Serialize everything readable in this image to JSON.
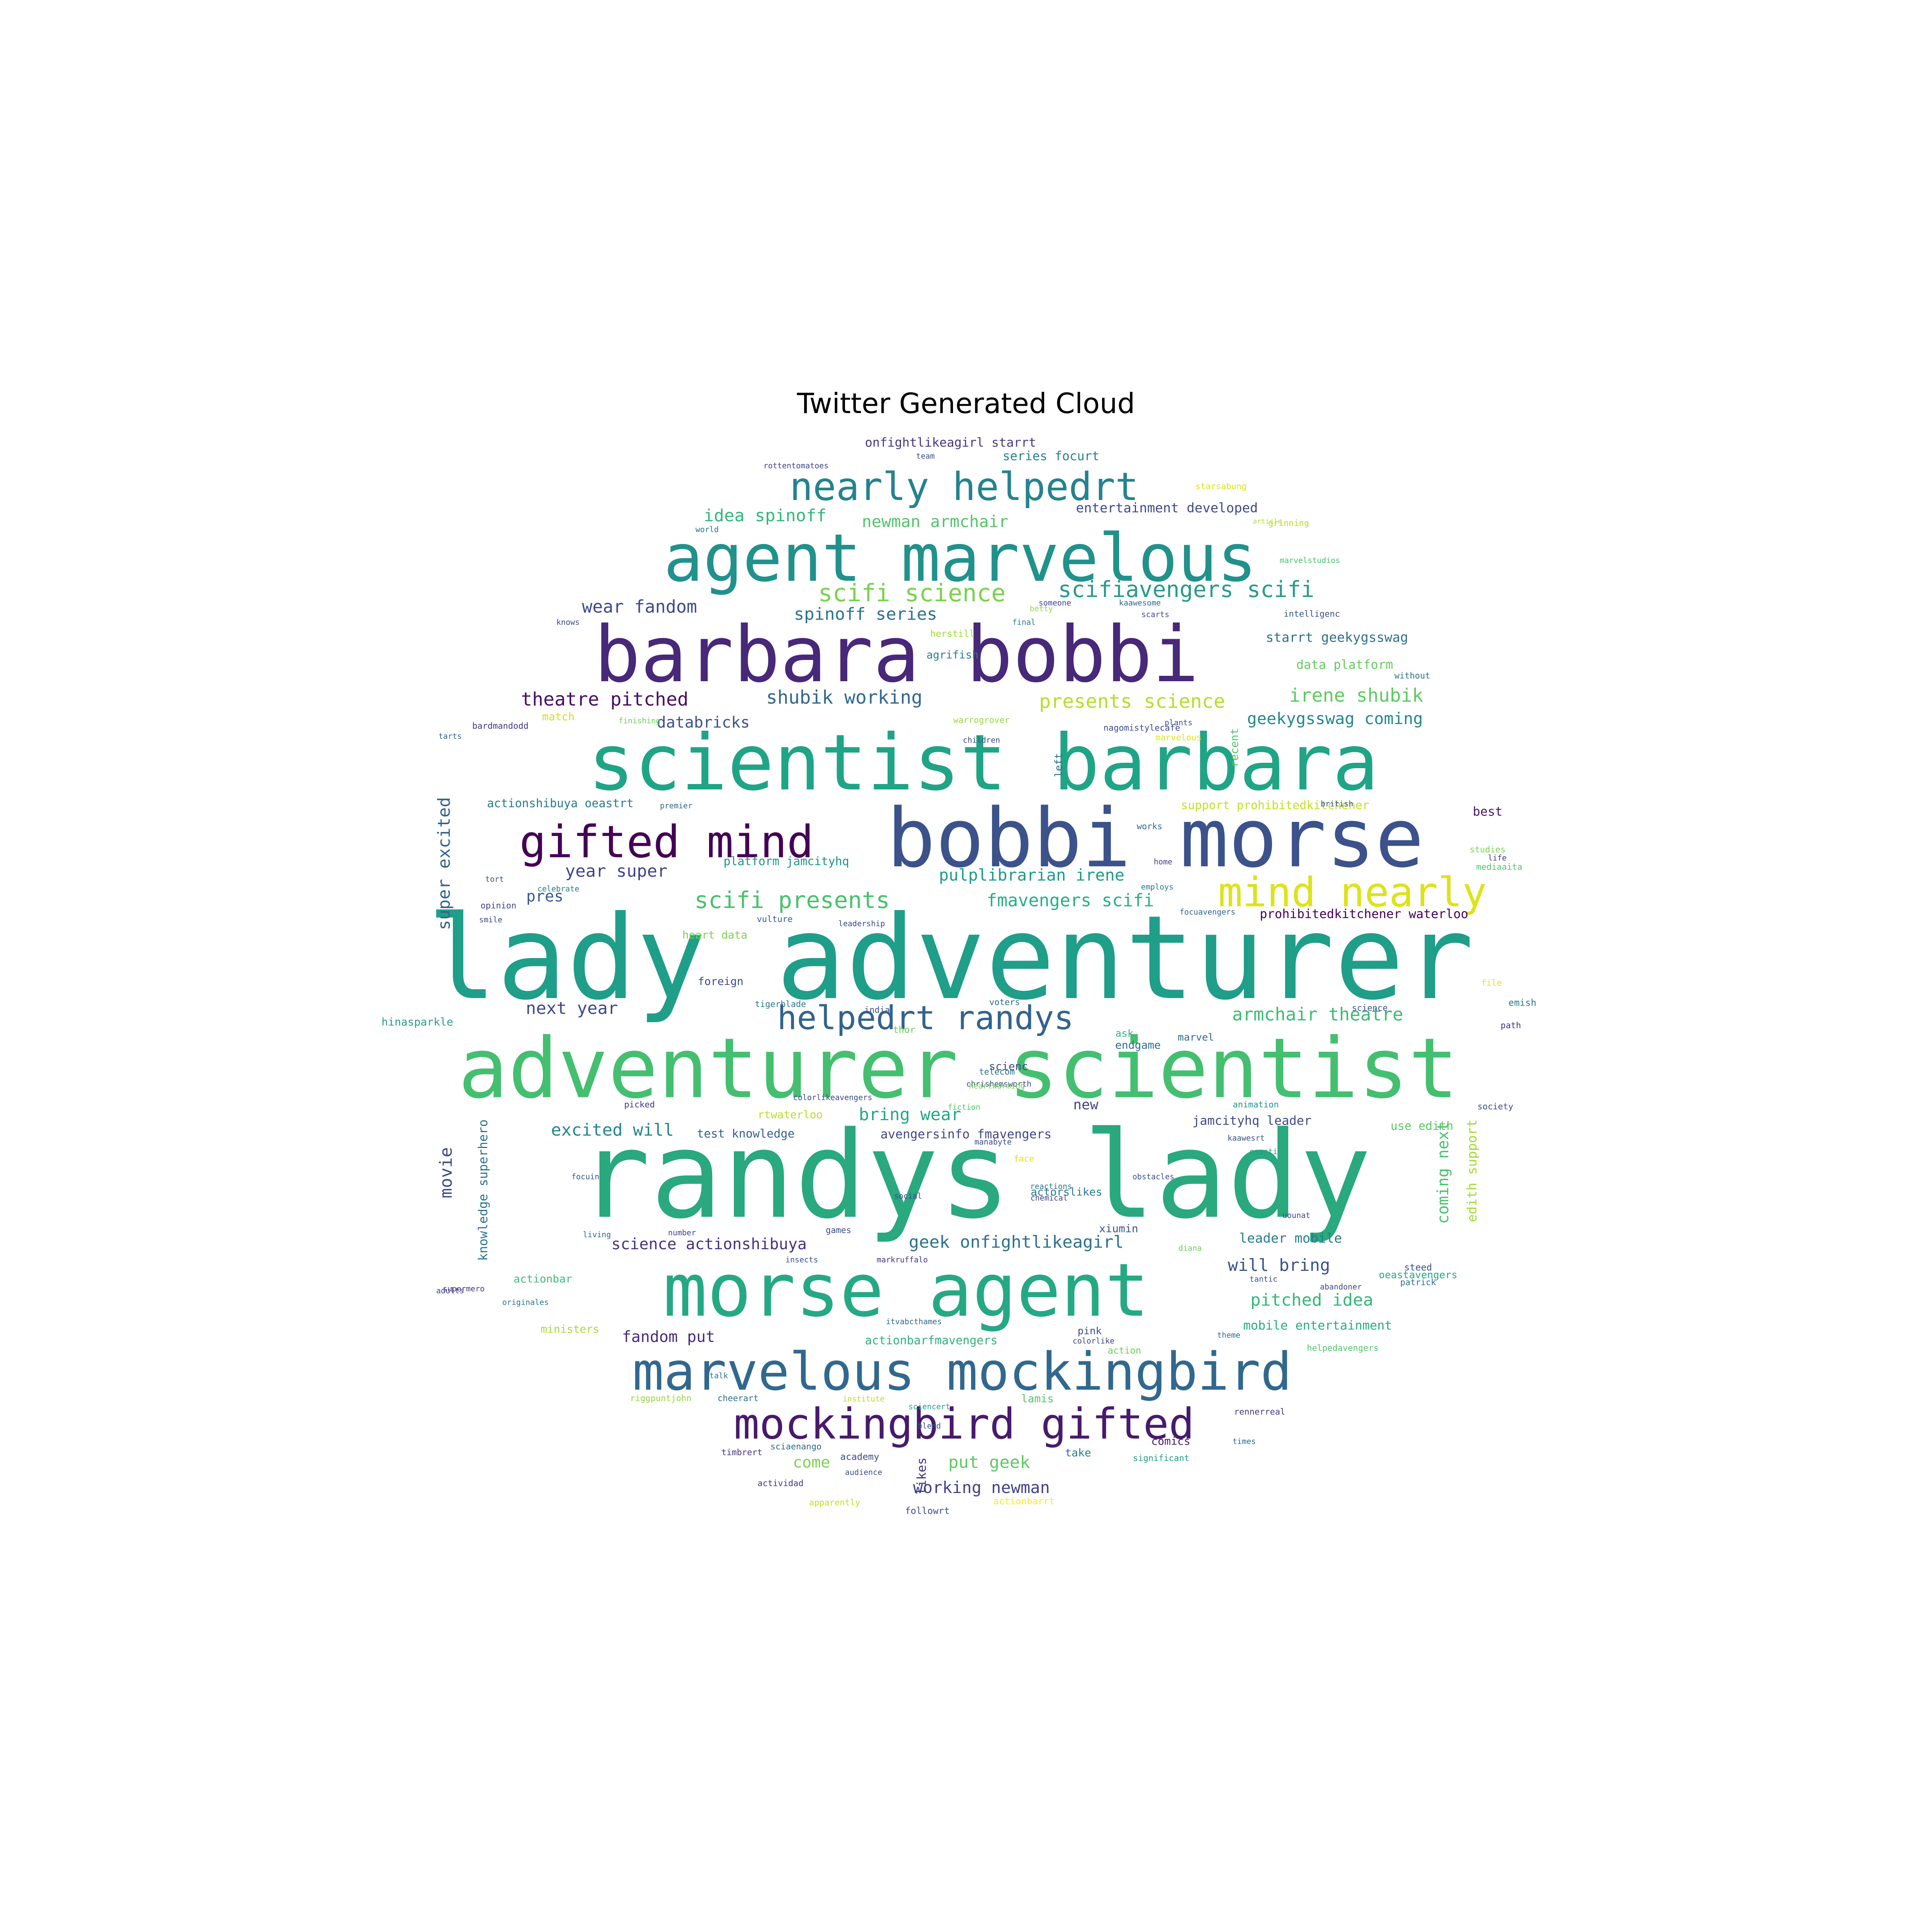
{
  "title": "Twitter Generated Cloud",
  "words": [
    {
      "text": "randys lady",
      "color": "#2aa87e"
    },
    {
      "text": "lady adventurer",
      "color": "#1f9e89"
    },
    {
      "text": "adventurer scientist",
      "color": "#44bf70"
    },
    {
      "text": "bobbi morse",
      "color": "#3b528b"
    },
    {
      "text": "scientist barbara",
      "color": "#20a486"
    },
    {
      "text": "barbara bobbi",
      "color": "#482878"
    },
    {
      "text": "morse agent",
      "color": "#25a984"
    },
    {
      "text": "agent marvelous",
      "color": "#21918c"
    },
    {
      "text": "marvelous mockingbird",
      "color": "#31688e"
    },
    {
      "text": "mockingbird gifted",
      "color": "#481a6c"
    },
    {
      "text": "gifted mind",
      "color": "#440154"
    },
    {
      "text": "mind nearly",
      "color": "#dde318"
    },
    {
      "text": "nearly helpedrt",
      "color": "#26828e"
    },
    {
      "text": "helpedrt randys",
      "color": "#33638d"
    },
    {
      "text": "scifi science",
      "color": "#7ad151"
    },
    {
      "text": "scifiavengers scifi",
      "color": "#2a9b8a"
    },
    {
      "text": "scifi presents",
      "color": "#4ac16d"
    },
    {
      "text": "presents science",
      "color": "#b5de2b"
    },
    {
      "text": "irene shubik",
      "color": "#5ec962"
    },
    {
      "text": "idea spinoff",
      "color": "#35b779"
    },
    {
      "text": "newman armchair",
      "color": "#52c569"
    },
    {
      "text": "spinoff series",
      "color": "#2c728e"
    },
    {
      "text": "wear fandom",
      "color": "#3e4a89"
    },
    {
      "text": "theatre pitched",
      "color": "#471063"
    },
    {
      "text": "shubik working",
      "color": "#31688e"
    },
    {
      "text": "databricks",
      "color": "#3b528b"
    },
    {
      "text": "geekygsswag coming",
      "color": "#23888e"
    },
    {
      "text": "fmavengers scifi",
      "color": "#29af7f"
    },
    {
      "text": "pulplibrarian irene",
      "color": "#1e9b8a"
    },
    {
      "text": "armchair theatre",
      "color": "#3dbc74"
    },
    {
      "text": "year super",
      "color": "#414487"
    },
    {
      "text": "next year",
      "color": "#3e4989"
    },
    {
      "text": "pres",
      "color": "#38598c"
    },
    {
      "text": "super excited",
      "color": "#33638d"
    },
    {
      "text": "movie",
      "color": "#3e4a89"
    },
    {
      "text": "excited will",
      "color": "#25858e"
    },
    {
      "text": "bring wear",
      "color": "#22a884"
    },
    {
      "text": "science actionshibuya",
      "color": "#46327e"
    },
    {
      "text": "geek onfightlikeagirl",
      "color": "#2d708e"
    },
    {
      "text": "will bring",
      "color": "#3b528b"
    },
    {
      "text": "pitched idea",
      "color": "#35b779"
    },
    {
      "text": "fandom put",
      "color": "#472c7a"
    },
    {
      "text": "put geek",
      "color": "#5ec962"
    },
    {
      "text": "working newman",
      "color": "#424086"
    },
    {
      "text": "come",
      "color": "#7ad151"
    },
    {
      "text": "coming next",
      "color": "#4ac16d"
    },
    {
      "text": "edith support",
      "color": "#a0da39"
    },
    {
      "text": "knowledge superhero",
      "color": "#2c728e"
    },
    {
      "text": "mobile entertainment",
      "color": "#26ad81"
    },
    {
      "text": "leader mobile",
      "color": "#287c8e"
    },
    {
      "text": "jamcityhq leader",
      "color": "#3f4889"
    },
    {
      "text": "avengersinfo fmavengers",
      "color": "#404688"
    },
    {
      "text": "test knowledge",
      "color": "#355f8d"
    },
    {
      "text": "actionbarfmavengers",
      "color": "#2fb47c"
    },
    {
      "text": "starrt geekygsswag",
      "color": "#2e6f8e"
    },
    {
      "text": "data platform",
      "color": "#65cb5e"
    },
    {
      "text": "entertainment developed",
      "color": "#3e4a89"
    },
    {
      "text": "series focurt",
      "color": "#277f8e"
    },
    {
      "text": "onfightlikeagirl starrt",
      "color": "#443983"
    },
    {
      "text": "actionshibuya oeastrt",
      "color": "#29798e"
    },
    {
      "text": "platform jamcityhq",
      "color": "#20928c"
    },
    {
      "text": "heart data",
      "color": "#7ad151"
    },
    {
      "text": "support prohibitedkitchener",
      "color": "#c2df23"
    },
    {
      "text": "prohibitedkitchener waterloo",
      "color": "#440154"
    },
    {
      "text": "use edith",
      "color": "#5ec962"
    },
    {
      "text": "endgame",
      "color": "#2e6e8e"
    },
    {
      "text": "new",
      "color": "#414487"
    },
    {
      "text": "best",
      "color": "#481467"
    },
    {
      "text": "foreign",
      "color": "#3e4a89"
    },
    {
      "text": "agrifish",
      "color": "#287d8e"
    },
    {
      "text": "herstill",
      "color": "#9fda3a"
    },
    {
      "text": "actorslikes",
      "color": "#2a788e"
    },
    {
      "text": "xiumin",
      "color": "#3b528b"
    },
    {
      "text": "comics",
      "color": "#481b6d"
    },
    {
      "text": "ask",
      "color": "#2fb47c"
    },
    {
      "text": "marvel",
      "color": "#31688e"
    },
    {
      "text": "scienc",
      "color": "#3e4989"
    },
    {
      "text": "thor",
      "color": "#6ece58"
    },
    {
      "text": "likes",
      "color": "#46337f"
    },
    {
      "text": "take",
      "color": "#2a788e"
    },
    {
      "text": "pink",
      "color": "#3e4a89"
    },
    {
      "text": "lamis",
      "color": "#52c569"
    },
    {
      "text": "actionbar",
      "color": "#3dbc74"
    },
    {
      "text": "oeastavengers",
      "color": "#22a884"
    },
    {
      "text": "ministers",
      "color": "#a5db36"
    },
    {
      "text": "followrt",
      "color": "#3b528b"
    },
    {
      "text": "actionbarrt",
      "color": "#fde725"
    },
    {
      "text": "hinasparkle",
      "color": "#2a9b8a"
    },
    {
      "text": "rtwaterloo",
      "color": "#b8de29"
    },
    {
      "text": "left",
      "color": "#31688e"
    },
    {
      "text": "recent",
      "color": "#52c569"
    },
    {
      "text": "match",
      "color": "#cae11f"
    },
    {
      "text": "action",
      "color": "#6ece58"
    },
    {
      "text": "steed",
      "color": "#3b528b"
    },
    {
      "text": "patrick",
      "color": "#2d708e"
    },
    {
      "text": "rennerreal",
      "color": "#443a83"
    },
    {
      "text": "significant",
      "color": "#1f9a8a"
    },
    {
      "text": "academy",
      "color": "#3e4a89"
    },
    {
      "text": "timbrert",
      "color": "#46337f"
    },
    {
      "text": "riggpuntjohn",
      "color": "#95d840"
    },
    {
      "text": "actividad",
      "color": "#443983"
    },
    {
      "text": "apparently",
      "color": "#c2df23"
    },
    {
      "text": "audience",
      "color": "#3b528b"
    },
    {
      "text": "sciaenango",
      "color": "#31688e"
    },
    {
      "text": "opinion",
      "color": "#404588"
    },
    {
      "text": "vulture",
      "color": "#355f8d"
    },
    {
      "text": "tigerblade",
      "color": "#2a788e"
    },
    {
      "text": "india",
      "color": "#3b528b"
    },
    {
      "text": "voters",
      "color": "#31688e"
    },
    {
      "text": "science",
      "color": "#3b528b"
    },
    {
      "text": "file",
      "color": "#dde318"
    },
    {
      "text": "emish",
      "color": "#2a788e"
    },
    {
      "text": "path",
      "color": "#46337f"
    },
    {
      "text": "society",
      "color": "#3e4a89"
    },
    {
      "text": "studies",
      "color": "#7ad151"
    },
    {
      "text": "mediaaita",
      "color": "#52c569"
    },
    {
      "text": "life",
      "color": "#443983"
    },
    {
      "text": "without",
      "color": "#2d708e"
    },
    {
      "text": "intelligenc",
      "color": "#3b528b"
    },
    {
      "text": "grinning",
      "color": "#b8de29"
    },
    {
      "text": "marvelstudios",
      "color": "#4ac16d"
    },
    {
      "text": "british",
      "color": "#3b528b"
    },
    {
      "text": "works",
      "color": "#31688e"
    },
    {
      "text": "home",
      "color": "#404688"
    },
    {
      "text": "employs",
      "color": "#2a788e"
    },
    {
      "text": "focuavengers",
      "color": "#33638d"
    },
    {
      "text": "nagomistylecafe",
      "color": "#3e4a89"
    },
    {
      "text": "warrogrover",
      "color": "#95d840"
    },
    {
      "text": "plants",
      "color": "#3b528b"
    },
    {
      "text": "marvelous",
      "color": "#dde318"
    },
    {
      "text": "children",
      "color": "#404588"
    },
    {
      "text": "leadership",
      "color": "#3e4a89"
    },
    {
      "text": "premier",
      "color": "#31688e"
    },
    {
      "text": "celebrate",
      "color": "#2a788e"
    },
    {
      "text": "animation",
      "color": "#20928c"
    },
    {
      "text": "kaawesrt",
      "color": "#3b528b"
    },
    {
      "text": "oeasti",
      "color": "#2a9b8a"
    },
    {
      "text": "chrishemsworth",
      "color": "#404588"
    },
    {
      "text": "telecom",
      "color": "#2d708e"
    },
    {
      "text": "fiction",
      "color": "#52c569"
    },
    {
      "text": "picked",
      "color": "#443983"
    },
    {
      "text": "colorlikeavengers",
      "color": "#3e4a89"
    },
    {
      "text": "heartwarming",
      "color": "#6ece58"
    },
    {
      "text": "obstacles",
      "color": "#3b528b"
    },
    {
      "text": "chemical",
      "color": "#404588"
    },
    {
      "text": "reactions",
      "color": "#2a788e"
    },
    {
      "text": "games",
      "color": "#3e4a89"
    },
    {
      "text": "living",
      "color": "#31688e"
    },
    {
      "text": "number",
      "color": "#404588"
    },
    {
      "text": "markruffalo",
      "color": "#46337f"
    },
    {
      "text": "insects",
      "color": "#3b528b"
    },
    {
      "text": "adults",
      "color": "#3e4a89"
    },
    {
      "text": "supermero",
      "color": "#443983"
    },
    {
      "text": "originales",
      "color": "#2a788e"
    },
    {
      "text": "tantic",
      "color": "#3b528b"
    },
    {
      "text": "abandoner",
      "color": "#3e4a89"
    },
    {
      "text": "itvabcthames",
      "color": "#31688e"
    },
    {
      "text": "theme",
      "color": "#2d708e"
    },
    {
      "text": "colorlike",
      "color": "#404588"
    },
    {
      "text": "talk",
      "color": "#2a788e"
    },
    {
      "text": "blend",
      "color": "#3b528b"
    },
    {
      "text": "sciencert",
      "color": "#2a9b8a"
    },
    {
      "text": "institute",
      "color": "#b8de29"
    },
    {
      "text": "cheerart",
      "color": "#2d708e"
    },
    {
      "text": "manabyte",
      "color": "#3e4a89"
    },
    {
      "text": "times",
      "color": "#31688e"
    },
    {
      "text": "helpedavengers",
      "color": "#52c569"
    },
    {
      "text": "rottentomatoes",
      "color": "#404588"
    },
    {
      "text": "team",
      "color": "#3b528b"
    },
    {
      "text": "world",
      "color": "#2d708e"
    },
    {
      "text": "knows",
      "color": "#3e4a89"
    },
    {
      "text": "tarts",
      "color": "#31688e"
    },
    {
      "text": "bardmandodd",
      "color": "#443983"
    },
    {
      "text": "finishing",
      "color": "#6ece58"
    },
    {
      "text": "tort",
      "color": "#3b528b"
    },
    {
      "text": "smile",
      "color": "#3e4a89"
    },
    {
      "text": "starsabung",
      "color": "#dde318"
    },
    {
      "text": "someone",
      "color": "#404588"
    },
    {
      "text": "betty",
      "color": "#95d840"
    },
    {
      "text": "kaawesome",
      "color": "#31688e"
    },
    {
      "text": "scarts",
      "color": "#3e4a89"
    },
    {
      "text": "final",
      "color": "#2a788e"
    },
    {
      "text": "article",
      "color": "#b8de29"
    },
    {
      "text": "face",
      "color": "#dde318"
    },
    {
      "text": "focuin",
      "color": "#3b528b"
    },
    {
      "text": "social",
      "color": "#3e4a89"
    },
    {
      "text": "diana",
      "color": "#6ece58"
    },
    {
      "text": "uounat",
      "color": "#404588"
    }
  ]
}
